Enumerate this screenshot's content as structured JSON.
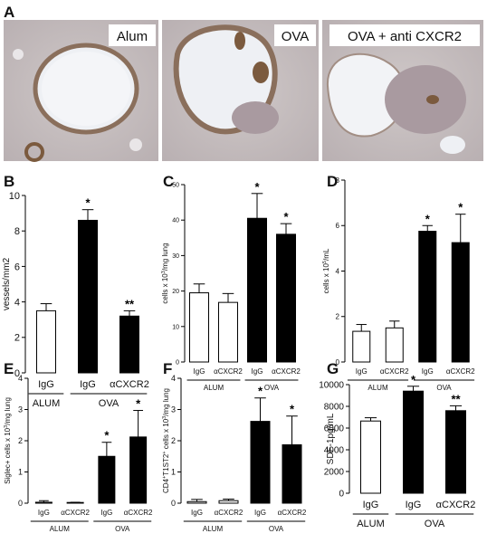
{
  "histology": {
    "panel_letter": "A",
    "panels": [
      {
        "label": "Alum"
      },
      {
        "label": "OVA"
      },
      {
        "label": "OVA + anti CXCR2"
      }
    ]
  },
  "chart_data": [
    {
      "panel": "B",
      "type": "bar",
      "ylabel": "vessels/mm2",
      "ylim": [
        0,
        10
      ],
      "yticks": [
        0,
        2,
        4,
        6,
        8,
        10
      ],
      "categories": [
        "IgG",
        "IgG",
        "αCXCR2"
      ],
      "values": [
        3.5,
        8.6,
        3.2
      ],
      "errors": [
        0.4,
        0.6,
        0.3
      ],
      "fills": [
        "open",
        "filled",
        "filled"
      ],
      "significance": [
        "",
        "*",
        "**"
      ],
      "groups": [
        {
          "label": "ALUM",
          "span": [
            0,
            0
          ]
        },
        {
          "label": "OVA",
          "span": [
            1,
            2
          ]
        }
      ]
    },
    {
      "panel": "C",
      "type": "bar",
      "ylabel_parts": [
        "cells x 10",
        "3",
        "/mg lung"
      ],
      "ylim": [
        0,
        50
      ],
      "yticks": [
        0,
        10,
        20,
        30,
        40,
        50
      ],
      "categories": [
        "IgG",
        "αCXCR2",
        "IgG",
        "αCXCR2"
      ],
      "values": [
        19.5,
        16.8,
        40.5,
        36.0
      ],
      "errors": [
        2.5,
        2.5,
        7.0,
        3.0
      ],
      "fills": [
        "open",
        "open",
        "filled",
        "filled"
      ],
      "significance": [
        "",
        "",
        "*",
        "*"
      ],
      "groups": [
        {
          "label": "ALUM",
          "span": [
            0,
            1
          ]
        },
        {
          "label": "OVA",
          "span": [
            2,
            3
          ]
        }
      ]
    },
    {
      "panel": "D",
      "type": "bar",
      "ylabel_parts": [
        "cells x 10",
        "5",
        "/mL"
      ],
      "ylim": [
        0,
        8
      ],
      "yticks": [
        0,
        2,
        4,
        6,
        8
      ],
      "categories": [
        "IgG",
        "αCXCR2",
        "IgG",
        "αCXCR2"
      ],
      "values": [
        1.35,
        1.5,
        5.75,
        5.25
      ],
      "errors": [
        0.3,
        0.3,
        0.25,
        1.25
      ],
      "fills": [
        "open",
        "open",
        "filled",
        "filled"
      ],
      "significance": [
        "",
        "",
        "*",
        "*"
      ],
      "groups": [
        {
          "label": "ALUM",
          "span": [
            0,
            1
          ]
        },
        {
          "label": "OVA",
          "span": [
            2,
            3
          ]
        }
      ]
    },
    {
      "panel": "E",
      "type": "bar",
      "ylabel_parts": [
        "Siglec+ cells x 10",
        "3",
        "/mg lung"
      ],
      "ylim": [
        0,
        4
      ],
      "yticks": [
        0,
        1,
        2,
        3,
        4
      ],
      "categories": [
        "IgG",
        "αCXCR2",
        "IgG",
        "αCXCR2"
      ],
      "values": [
        0.03,
        0.01,
        1.5,
        2.12
      ],
      "errors": [
        0.05,
        0.02,
        0.45,
        0.85
      ],
      "fills": [
        "open",
        "open",
        "filled",
        "filled"
      ],
      "significance": [
        "",
        "",
        "*",
        "*"
      ],
      "groups": [
        {
          "label": "ALUM",
          "span": [
            0,
            1
          ]
        },
        {
          "label": "OVA",
          "span": [
            2,
            3
          ]
        }
      ]
    },
    {
      "panel": "F",
      "type": "bar",
      "ylabel_parts": [
        "CD4",
        "+",
        "T1ST2",
        "+",
        " cells x 10",
        "3",
        "/mg lung"
      ],
      "ylim": [
        0,
        4
      ],
      "yticks": [
        0,
        1,
        2,
        3,
        4
      ],
      "categories": [
        "IgG",
        "αCXCR2",
        "IgG",
        "αCXCR2"
      ],
      "values": [
        0.05,
        0.08,
        2.62,
        1.87
      ],
      "errors": [
        0.07,
        0.05,
        0.75,
        0.92
      ],
      "fills": [
        "open",
        "open",
        "filled",
        "filled"
      ],
      "significance": [
        "",
        "",
        "*",
        "*"
      ],
      "groups": [
        {
          "label": "ALUM",
          "span": [
            0,
            1
          ]
        },
        {
          "label": "OVA",
          "span": [
            2,
            3
          ]
        }
      ]
    },
    {
      "panel": "G",
      "type": "bar",
      "ylabel": "SDF-1pg/mL",
      "ylim": [
        0,
        10000
      ],
      "yticks": [
        0,
        2000,
        4000,
        6000,
        8000,
        10000
      ],
      "categories": [
        "IgG",
        "IgG",
        "αCXCR2"
      ],
      "values": [
        6650,
        9400,
        7600
      ],
      "errors": [
        300,
        450,
        450
      ],
      "fills": [
        "open",
        "filled",
        "filled"
      ],
      "significance": [
        "",
        "*",
        "**"
      ],
      "groups": [
        {
          "label": "ALUM",
          "span": [
            0,
            0
          ]
        },
        {
          "label": "OVA",
          "span": [
            1,
            2
          ]
        }
      ]
    }
  ]
}
